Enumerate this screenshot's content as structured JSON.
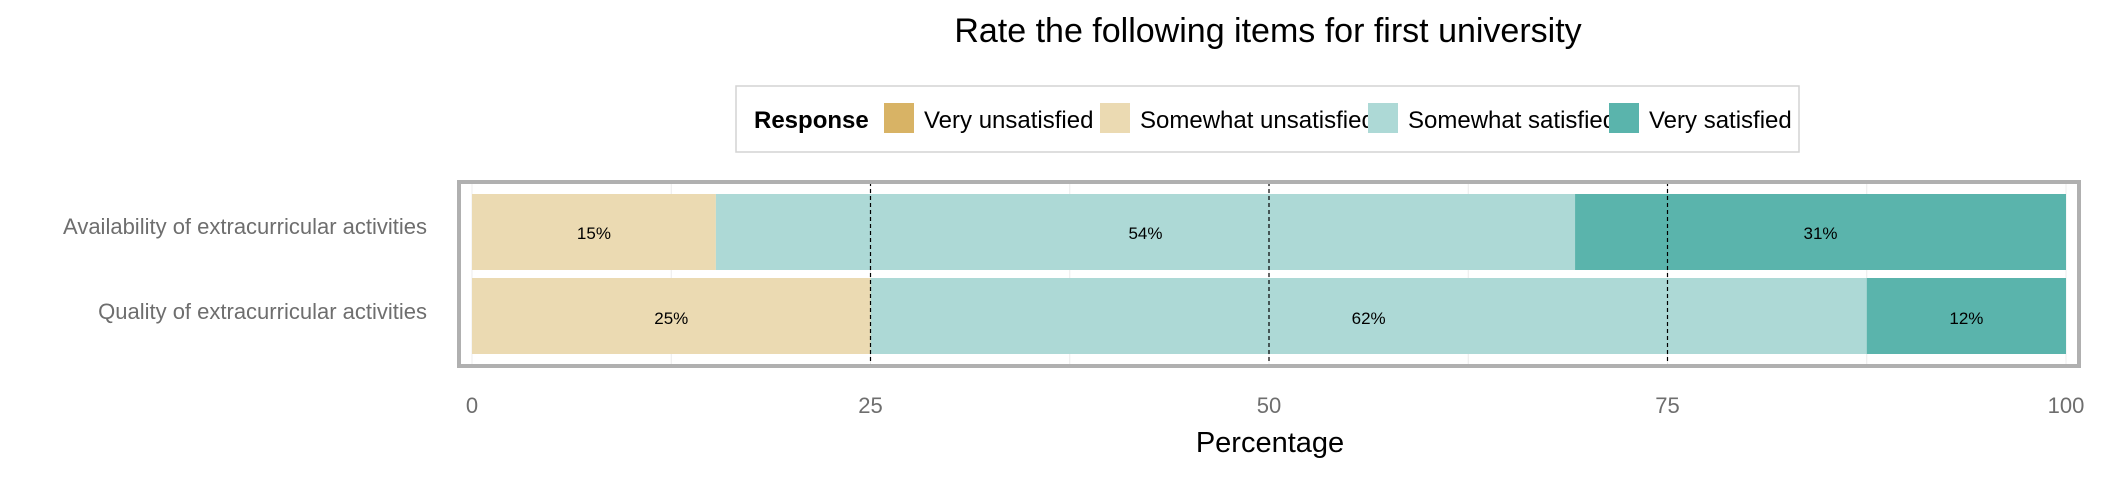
{
  "chart_data": {
    "type": "bar",
    "orientation": "horizontal",
    "stacked": true,
    "title": "Rate the following items for first university",
    "xlabel": "Percentage",
    "ylabel": "",
    "xlim": [
      0,
      100
    ],
    "xticks": [
      "0",
      "25",
      "50",
      "75",
      "100"
    ],
    "grid": true,
    "legend": {
      "title": "Response",
      "position": "top",
      "entries": [
        "Very unsatisfied",
        "Somewhat unsatisfied",
        "Somewhat satisfied",
        "Very satisfied"
      ]
    },
    "categories": [
      "Availability of extracurricular activities",
      "Quality of extracurricular activities"
    ],
    "series": [
      {
        "name": "Very unsatisfied",
        "color": "#D8B365",
        "values": [
          0,
          0
        ],
        "labels": [
          "",
          ""
        ]
      },
      {
        "name": "Somewhat unsatisfied",
        "color": "#EBDAB2",
        "values": [
          15.3,
          25.0
        ],
        "labels": [
          "15%",
          "25%"
        ]
      },
      {
        "name": "Somewhat satisfied",
        "color": "#ADD9D6",
        "values": [
          53.9,
          62.5
        ],
        "labels": [
          "54%",
          "62%"
        ]
      },
      {
        "name": "Very satisfied",
        "color": "#5AB4AC",
        "values": [
          30.8,
          12.5
        ],
        "labels": [
          "31%",
          "12%"
        ]
      }
    ],
    "reference_lines": [
      25,
      50,
      75
    ]
  }
}
